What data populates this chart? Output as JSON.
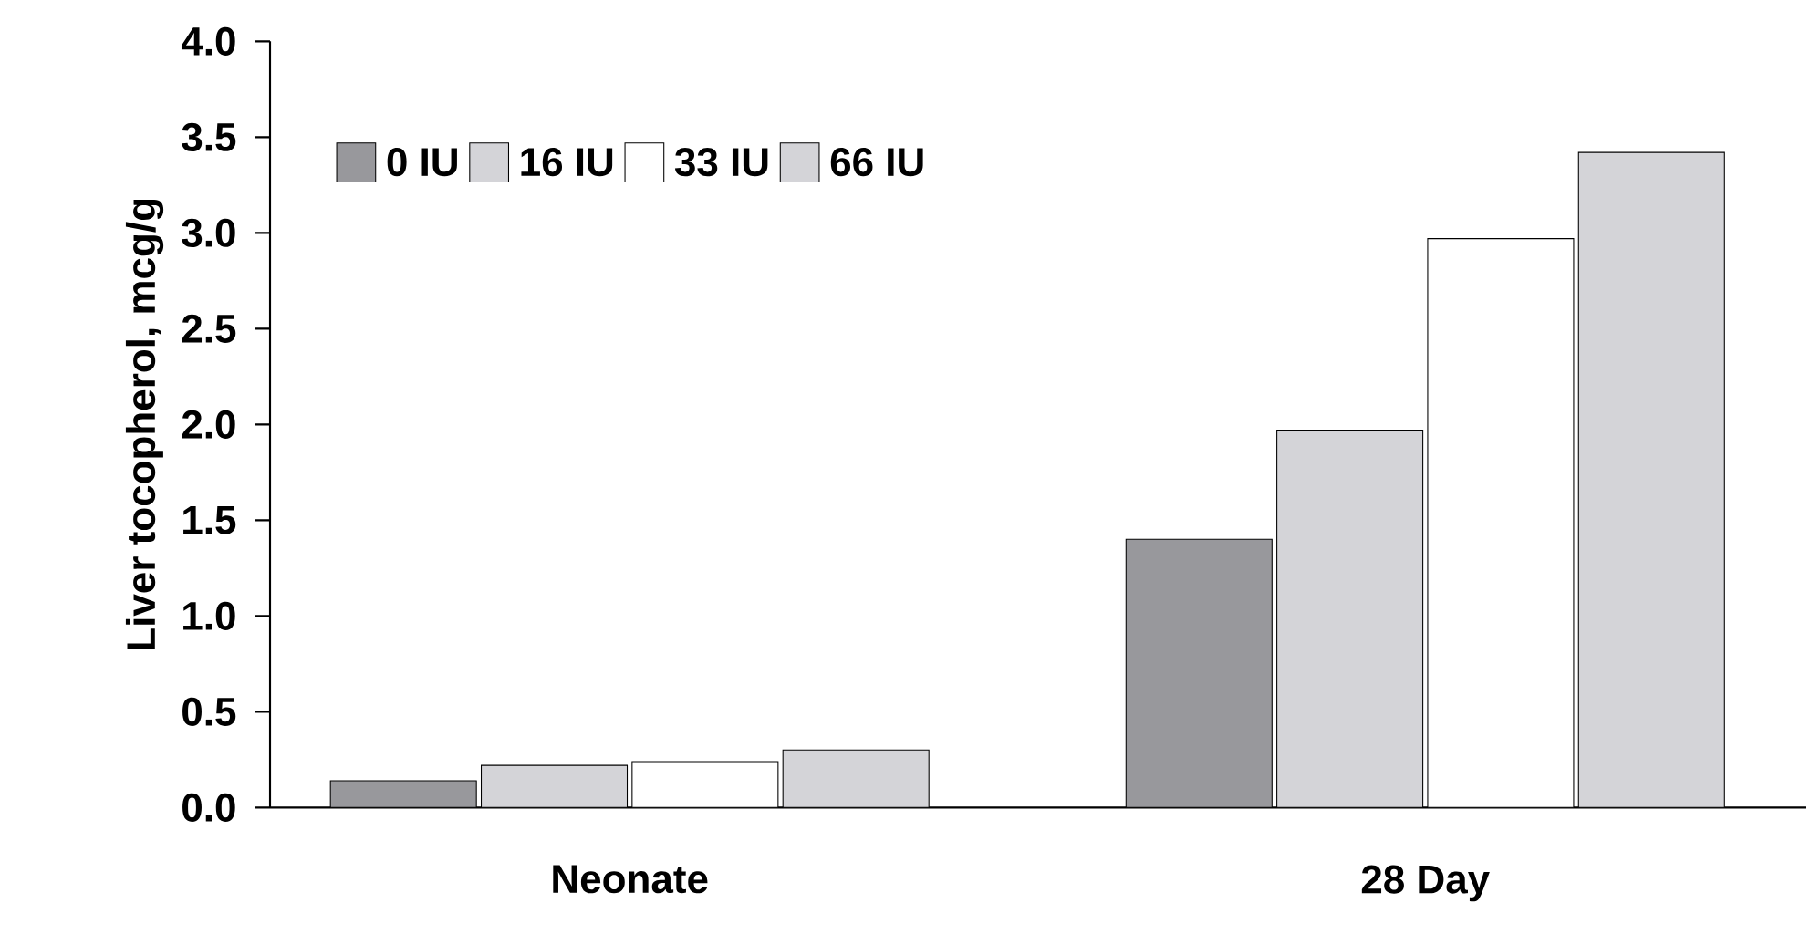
{
  "chart_data": {
    "type": "bar",
    "ylabel": "Liver tocopherol, mcg/g",
    "categories": [
      "Neonate",
      "28 Day"
    ],
    "series": [
      {
        "name": "0 IU",
        "color": "#98989c",
        "values": [
          0.14,
          1.4
        ]
      },
      {
        "name": "16 IU",
        "color": "#d4d4d8",
        "values": [
          0.22,
          1.97
        ]
      },
      {
        "name": "33 IU",
        "color": "#ffffff",
        "values": [
          0.24,
          2.97
        ]
      },
      {
        "name": "66 IU",
        "color": "#d4d4d8",
        "values": [
          0.3,
          3.42
        ]
      }
    ],
    "ylim": [
      0,
      4
    ],
    "yticks": [
      {
        "value": 0,
        "label": "0.0"
      },
      {
        "value": 0.5,
        "label": "0.5"
      },
      {
        "value": 1,
        "label": "1.0"
      },
      {
        "value": 1.5,
        "label": "1.5"
      },
      {
        "value": 2,
        "label": "2.0"
      },
      {
        "value": 2.5,
        "label": "2.5"
      },
      {
        "value": 3,
        "label": "3.0"
      },
      {
        "value": 3.5,
        "label": "3.5"
      },
      {
        "value": 4,
        "label": "4.0"
      }
    ],
    "grid": false,
    "legend": "top left"
  }
}
